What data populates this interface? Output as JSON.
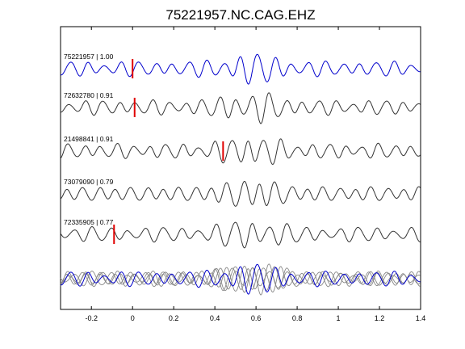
{
  "chart_data": {
    "type": "line",
    "title": "75221957.NC.CAG.EHZ",
    "xlabel": "",
    "ylabel": "",
    "xlim": [
      -0.35,
      1.4
    ],
    "x_ticks": [
      -0.2,
      0,
      0.2,
      0.4,
      0.6,
      0.8,
      1,
      1.2,
      1.4
    ],
    "x_tick_labels": [
      "-0.2",
      "0",
      "0.2",
      "0.4",
      "0.6",
      "0.8",
      "1",
      "1.2",
      "1.4"
    ],
    "grid": false,
    "colors": {
      "primary": "#0000cc",
      "other": "#333333",
      "overlay": "#888888",
      "pick": "#e00000"
    },
    "series": [
      {
        "label": "75221957 | 1.00",
        "color": "#0000cc",
        "pick_time": 0.0
      },
      {
        "label": "72632780 | 0.91",
        "color": "#333333",
        "pick_time": 0.01
      },
      {
        "label": "21498841 | 0.91",
        "color": "#333333",
        "pick_time": 0.44
      },
      {
        "label": "73079090 | 0.79",
        "color": "#333333",
        "pick_time": null
      },
      {
        "label": "72335905 | 0.77",
        "color": "#333333",
        "pick_time": -0.09
      }
    ]
  }
}
